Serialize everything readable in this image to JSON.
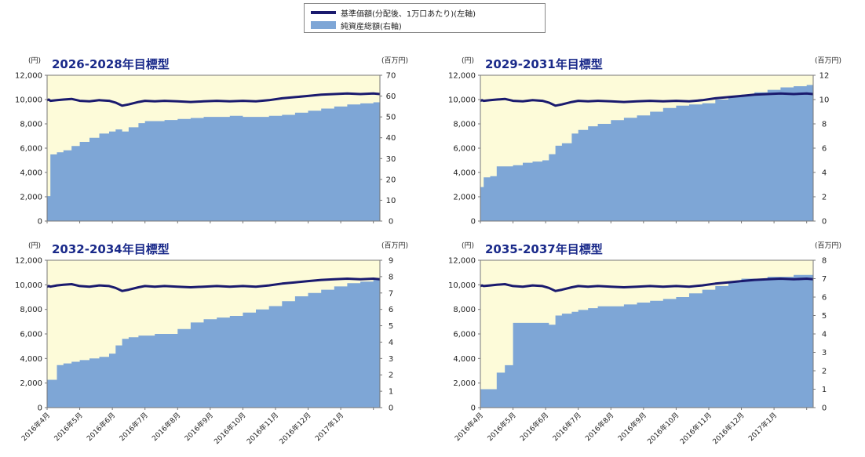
{
  "legend": {
    "nav_label": "基準価額(分配後、1万口あたり)(左軸)",
    "assets_label": "純資産総額(右軸)"
  },
  "colors": {
    "nav_line": "#1a1a6e",
    "assets_fill": "#7ea6d6",
    "plot_bg": "#fdfbd9",
    "title": "#1a2a8a"
  },
  "x_tick_labels": [
    "2016年4月",
    "2016年5月",
    "2016年6月",
    "2016年7月",
    "2016年8月",
    "2016年9月",
    "2016年10月",
    "2016年11月",
    "2016年12月",
    "2017年1月"
  ],
  "chart_data": [
    {
      "type": "line",
      "title": "2026-2028年目標型",
      "left_unit": "(円)",
      "right_unit": "(百万円)",
      "ylim_left": [
        0,
        12000
      ],
      "ylim_right": [
        0,
        70
      ],
      "left_ticks": [
        "0",
        "2,000",
        "4,000",
        "6,000",
        "8,000",
        "10,000",
        "12,000"
      ],
      "right_ticks": [
        "0",
        "10",
        "20",
        "30",
        "40",
        "50",
        "60",
        "70"
      ],
      "x_months": [
        0,
        0.05,
        0.1,
        0.3,
        0.5,
        0.75,
        1,
        1.3,
        1.6,
        1.9,
        2.1,
        2.3,
        2.5,
        2.8,
        3,
        3.3,
        3.6,
        4,
        4.4,
        4.8,
        5.2,
        5.6,
        6,
        6.4,
        6.8,
        7.2,
        7.6,
        8,
        8.4,
        8.8,
        9.2,
        9.6,
        10,
        10.2
      ],
      "series": [
        {
          "name": "基準価額(分配後、1万口あたり)(左軸)",
          "axis": "left",
          "values": [
            9950,
            10000,
            9900,
            9950,
            10000,
            10050,
            9900,
            9850,
            9950,
            9900,
            9750,
            9500,
            9600,
            9800,
            9900,
            9850,
            9900,
            9850,
            9800,
            9850,
            9900,
            9850,
            9900,
            9850,
            9950,
            10100,
            10200,
            10300,
            10400,
            10450,
            10500,
            10450,
            10500,
            10450
          ]
        },
        {
          "name": "純資産総額(右軸)",
          "axis": "right",
          "values": [
            12,
            12,
            32,
            33,
            34,
            36,
            38,
            40,
            42,
            43,
            44,
            43,
            45,
            47,
            48,
            48,
            48.5,
            49,
            49.5,
            50,
            50,
            50.5,
            50,
            50,
            50.5,
            51,
            52,
            53,
            54,
            55,
            56,
            56.5,
            57,
            57
          ]
        }
      ]
    },
    {
      "type": "line",
      "title": "2029-2031年目標型",
      "left_unit": "(円)",
      "right_unit": "(百万円)",
      "ylim_left": [
        0,
        12000
      ],
      "ylim_right": [
        0,
        12
      ],
      "left_ticks": [
        "0",
        "2,000",
        "4,000",
        "6,000",
        "8,000",
        "10,000",
        "12,000"
      ],
      "right_ticks": [
        "0",
        "2",
        "4",
        "6",
        "8",
        "10",
        "12"
      ],
      "x_months": [
        0,
        0.05,
        0.1,
        0.3,
        0.5,
        0.75,
        1,
        1.3,
        1.6,
        1.9,
        2.1,
        2.3,
        2.5,
        2.8,
        3,
        3.3,
        3.6,
        4,
        4.4,
        4.8,
        5.2,
        5.6,
        6,
        6.4,
        6.8,
        7.2,
        7.6,
        8,
        8.4,
        8.8,
        9.2,
        9.6,
        10,
        10.2
      ],
      "series": [
        {
          "name": "基準価額(分配後、1万口あたり)(左軸)",
          "axis": "left",
          "values": [
            9900,
            9950,
            9900,
            9950,
            10000,
            10050,
            9900,
            9850,
            9950,
            9900,
            9750,
            9500,
            9600,
            9800,
            9900,
            9850,
            9900,
            9850,
            9800,
            9850,
            9900,
            9850,
            9900,
            9850,
            9950,
            10100,
            10200,
            10300,
            10400,
            10450,
            10500,
            10450,
            10500,
            10450
          ]
        },
        {
          "name": "純資産総額(右軸)",
          "axis": "right",
          "values": [
            2.8,
            2.8,
            3.6,
            3.7,
            4.5,
            4.5,
            4.6,
            4.8,
            4.9,
            5,
            5.5,
            6.2,
            6.4,
            7.2,
            7.5,
            7.8,
            8,
            8.3,
            8.5,
            8.7,
            9,
            9.3,
            9.5,
            9.6,
            9.7,
            10,
            10.2,
            10.4,
            10.6,
            10.8,
            11,
            11.1,
            11.2,
            11.2
          ]
        }
      ]
    },
    {
      "type": "line",
      "title": "2032-2034年目標型",
      "left_unit": "(円)",
      "right_unit": "(百万円)",
      "ylim_left": [
        0,
        12000
      ],
      "ylim_right": [
        0,
        9
      ],
      "left_ticks": [
        "0",
        "2,000",
        "4,000",
        "6,000",
        "8,000",
        "10,000",
        "12,000"
      ],
      "right_ticks": [
        "0",
        "1",
        "2",
        "3",
        "4",
        "5",
        "6",
        "7",
        "8",
        "9"
      ],
      "x_months": [
        0,
        0.05,
        0.1,
        0.3,
        0.5,
        0.75,
        1,
        1.3,
        1.6,
        1.9,
        2.1,
        2.3,
        2.5,
        2.8,
        3,
        3.3,
        3.6,
        4,
        4.4,
        4.8,
        5.2,
        5.6,
        6,
        6.4,
        6.8,
        7.2,
        7.6,
        8,
        8.4,
        8.8,
        9.2,
        9.6,
        10,
        10.2
      ],
      "series": [
        {
          "name": "基準価額(分配後、1万口あたり)(左軸)",
          "axis": "left",
          "values": [
            9850,
            9900,
            9850,
            9950,
            10000,
            10050,
            9900,
            9850,
            9950,
            9900,
            9750,
            9500,
            9600,
            9800,
            9900,
            9850,
            9900,
            9850,
            9800,
            9850,
            9900,
            9850,
            9900,
            9850,
            9950,
            10100,
            10200,
            10300,
            10400,
            10450,
            10500,
            10450,
            10500,
            10450
          ]
        },
        {
          "name": "純資産総額(右軸)",
          "axis": "right",
          "values": [
            1.7,
            1.7,
            1.7,
            2.6,
            2.7,
            2.8,
            2.9,
            3,
            3.1,
            3.3,
            3.8,
            4.2,
            4.3,
            4.4,
            4.4,
            4.5,
            4.5,
            4.8,
            5.2,
            5.4,
            5.5,
            5.6,
            5.8,
            6,
            6.2,
            6.5,
            6.8,
            7,
            7.2,
            7.4,
            7.6,
            7.7,
            7.8,
            7.8
          ]
        }
      ]
    },
    {
      "type": "line",
      "title": "2035-2037年目標型",
      "left_unit": "(円)",
      "right_unit": "(百万円)",
      "ylim_left": [
        0,
        12000
      ],
      "ylim_right": [
        0,
        8
      ],
      "left_ticks": [
        "0",
        "2,000",
        "4,000",
        "6,000",
        "8,000",
        "10,000",
        "12,000"
      ],
      "right_ticks": [
        "0",
        "1",
        "2",
        "3",
        "4",
        "5",
        "6",
        "7",
        "8"
      ],
      "x_months": [
        0,
        0.05,
        0.1,
        0.3,
        0.5,
        0.75,
        1,
        1.3,
        1.6,
        1.9,
        2.1,
        2.3,
        2.5,
        2.8,
        3,
        3.3,
        3.6,
        4,
        4.4,
        4.8,
        5.2,
        5.6,
        6,
        6.4,
        6.8,
        7.2,
        7.6,
        8,
        8.4,
        8.8,
        9.2,
        9.6,
        10,
        10.2
      ],
      "series": [
        {
          "name": "基準価額(分配後、1万口あたり)(左軸)",
          "axis": "left",
          "values": [
            9900,
            9950,
            9900,
            9950,
            10000,
            10050,
            9900,
            9850,
            9950,
            9900,
            9750,
            9500,
            9600,
            9800,
            9900,
            9850,
            9900,
            9850,
            9800,
            9850,
            9900,
            9850,
            9900,
            9850,
            9950,
            10100,
            10200,
            10300,
            10400,
            10450,
            10500,
            10450,
            10500,
            10450
          ]
        },
        {
          "name": "純資産総額(右軸)",
          "axis": "right",
          "values": [
            1,
            1,
            1,
            1,
            1.9,
            2.3,
            4.6,
            4.6,
            4.6,
            4.6,
            4.5,
            5,
            5.1,
            5.2,
            5.3,
            5.4,
            5.5,
            5.5,
            5.6,
            5.7,
            5.8,
            5.9,
            6,
            6.2,
            6.4,
            6.6,
            6.8,
            7,
            7,
            7.1,
            7.1,
            7.2,
            7.2,
            7.2
          ]
        }
      ]
    }
  ]
}
